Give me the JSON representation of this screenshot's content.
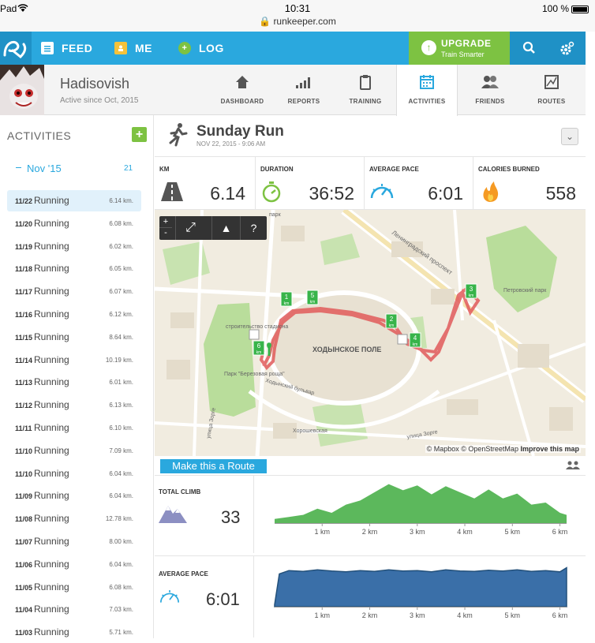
{
  "status_bar": {
    "left": "Pad",
    "time": "10:31",
    "url": "runkeeper.com",
    "battery": "100 %"
  },
  "nav": {
    "feed": "FEED",
    "me": "ME",
    "log": "LOG",
    "upgrade_title": "UPGRADE",
    "upgrade_sub": "Train Smarter"
  },
  "profile": {
    "name": "Hadisovish",
    "since": "Active since Oct, 2015"
  },
  "tabs": [
    {
      "label": "DASHBOARD",
      "icon": "home-icon"
    },
    {
      "label": "REPORTS",
      "icon": "bars-icon"
    },
    {
      "label": "TRAINING",
      "icon": "clipboard-icon"
    },
    {
      "label": "ACTIVITIES",
      "icon": "calendar-icon"
    },
    {
      "label": "FRIENDS",
      "icon": "friends-icon"
    },
    {
      "label": "ROUTES",
      "icon": "route-map-icon"
    }
  ],
  "sidebar": {
    "title": "ACTIVITIES",
    "add": "+",
    "month": "Nov '15",
    "month_count": "21",
    "dash": "—",
    "activities": [
      {
        "date": "11/22",
        "name": "Running",
        "dist": "6.14 km."
      },
      {
        "date": "11/20",
        "name": "Running",
        "dist": "6.08 km."
      },
      {
        "date": "11/19",
        "name": "Running",
        "dist": "6.02 km."
      },
      {
        "date": "11/18",
        "name": "Running",
        "dist": "6.05 km."
      },
      {
        "date": "11/17",
        "name": "Running",
        "dist": "6.07 km."
      },
      {
        "date": "11/16",
        "name": "Running",
        "dist": "6.12 km."
      },
      {
        "date": "11/15",
        "name": "Running",
        "dist": "8.64 km."
      },
      {
        "date": "11/14",
        "name": "Running",
        "dist": "10.19 km."
      },
      {
        "date": "11/13",
        "name": "Running",
        "dist": "6.01 km."
      },
      {
        "date": "11/12",
        "name": "Running",
        "dist": "6.13 km."
      },
      {
        "date": "11/11",
        "name": "Running",
        "dist": "6.10 km."
      },
      {
        "date": "11/10",
        "name": "Running",
        "dist": "7.09 km."
      },
      {
        "date": "11/10",
        "name": "Running",
        "dist": "6.04 km."
      },
      {
        "date": "11/09",
        "name": "Running",
        "dist": "6.04 km."
      },
      {
        "date": "11/08",
        "name": "Running",
        "dist": "12.78 km."
      },
      {
        "date": "11/07",
        "name": "Running",
        "dist": "8.00 km."
      },
      {
        "date": "11/06",
        "name": "Running",
        "dist": "6.04 km."
      },
      {
        "date": "11/05",
        "name": "Running",
        "dist": "6.08 km."
      },
      {
        "date": "11/04",
        "name": "Running",
        "dist": "7.03 km."
      },
      {
        "date": "11/03",
        "name": "Running",
        "dist": "5.71 km."
      }
    ]
  },
  "run": {
    "title": "Sunday Run",
    "date": "NOV 22, 2015 - 9:06 AM",
    "dropdown": "⌄"
  },
  "stats": [
    {
      "label": "KM",
      "value": "6.14",
      "icon": "road-icon"
    },
    {
      "label": "DURATION",
      "value": "36:52",
      "icon": "stopwatch-icon"
    },
    {
      "label": "AVERAGE PACE",
      "value": "6:01",
      "icon": "speedometer-icon"
    },
    {
      "label": "CALORIES BURNED",
      "value": "558",
      "icon": "flame-icon"
    }
  ],
  "map": {
    "controls": {
      "zoom_in": "+",
      "zoom_out": "-",
      "fullscreen": "⤢",
      "terrain": "▲",
      "help": "?"
    },
    "labels": [
      "парк",
      "Ленинградский проспект",
      "строительство стадиона",
      "ХОДЫНСКОЕ ПОЛЕ",
      "Парк \"Березовая роща\"",
      "Петровский парк",
      "Ходынский бульвар",
      "улица Зорге",
      "Хорошевская",
      "улица Зорге"
    ],
    "markers": [
      "1",
      "2",
      "3",
      "4",
      "5",
      "6"
    ],
    "marker_unit": "km",
    "attribution": "© Mapbox © OpenStreetMap",
    "attribution_link": "Improve this map",
    "colors": {
      "route": "#e05a5a",
      "park": "#b9dd9b",
      "road": "#ffffff",
      "marker": "#38b44a"
    }
  },
  "route_button": "Make this a Route",
  "climb": {
    "label": "TOTAL CLIMB",
    "value": "33",
    "icon": "mountains-icon"
  },
  "pace": {
    "label": "AVERAGE PACE",
    "value": "6:01",
    "icon": "speedometer-icon"
  },
  "km_ticks": [
    "1 km",
    "2 km",
    "3 km",
    "4 km",
    "5 km",
    "6 km"
  ],
  "chart_data": [
    {
      "type": "area",
      "title": "TOTAL CLIMB",
      "x": [
        0,
        0.3,
        0.6,
        0.9,
        1.2,
        1.5,
        1.8,
        2.1,
        2.4,
        2.7,
        3.0,
        3.3,
        3.6,
        3.9,
        4.2,
        4.5,
        4.8,
        5.1,
        5.4,
        5.7,
        6.0,
        6.14
      ],
      "values": [
        0.1,
        0.15,
        0.2,
        0.35,
        0.25,
        0.45,
        0.55,
        0.75,
        0.95,
        0.8,
        0.92,
        0.7,
        0.9,
        0.75,
        0.6,
        0.82,
        0.6,
        0.72,
        0.45,
        0.5,
        0.25,
        0.2
      ],
      "xtick_labels": [
        "1 km",
        "2 km",
        "3 km",
        "4 km",
        "5 km",
        "6 km"
      ],
      "color": "#5cb85c"
    },
    {
      "type": "area",
      "title": "AVERAGE PACE",
      "x": [
        0,
        0.1,
        0.3,
        0.6,
        0.9,
        1.2,
        1.5,
        1.8,
        2.1,
        2.4,
        2.7,
        3.0,
        3.3,
        3.6,
        3.9,
        4.2,
        4.5,
        4.8,
        5.1,
        5.4,
        5.7,
        6.0,
        6.14
      ],
      "values": [
        0.05,
        0.8,
        0.88,
        0.86,
        0.9,
        0.87,
        0.85,
        0.88,
        0.86,
        0.9,
        0.87,
        0.88,
        0.85,
        0.9,
        0.87,
        0.86,
        0.89,
        0.87,
        0.9,
        0.86,
        0.88,
        0.85,
        0.95
      ],
      "xtick_labels": [
        "1 km",
        "2 km",
        "3 km",
        "4 km",
        "5 km",
        "6 km"
      ],
      "color": "#3a6fa8"
    }
  ]
}
